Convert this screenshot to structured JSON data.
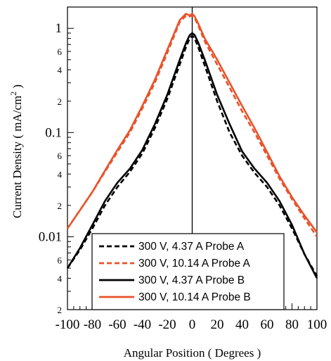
{
  "chart_data": {
    "type": "line",
    "xlabel": "Angular Position ( Degrees )",
    "ylabel_main": "Current Density ( mA/cm",
    "ylabel_sup": "2",
    "ylabel_end": " )",
    "xlim": [
      -100,
      100
    ],
    "ylim": [
      0.002,
      1.6
    ],
    "yscale": "log",
    "x_ticks": [
      -100,
      -80,
      -60,
      -40,
      -20,
      0,
      20,
      40,
      60,
      80,
      100
    ],
    "x_tick_labels": [
      "-100",
      "-80",
      "-60",
      "-40",
      "-20",
      "0",
      "20",
      "40",
      "60",
      "80",
      "100"
    ],
    "y_major_ticks": [
      {
        "value": 1,
        "label": "1"
      },
      {
        "value": 0.1,
        "label": "0.1"
      },
      {
        "value": 0.01,
        "label": "0.01"
      }
    ],
    "y_minor_ticks": [
      {
        "value": 6,
        "label": "6"
      },
      {
        "value": 4,
        "label": "4"
      },
      {
        "value": 2,
        "label": "2"
      }
    ],
    "vertical_line_x": 0,
    "legend_position": "bottom-center",
    "colors": {
      "black": "#000000",
      "orange": "#e8532b"
    },
    "series": [
      {
        "name": "300 V,   4.37 A Probe A",
        "color": "#000000",
        "dash": "dashed",
        "x": [
          -100,
          -90,
          -80,
          -70,
          -60,
          -50,
          -40,
          -30,
          -20,
          -10,
          -5,
          -2,
          0,
          2,
          5,
          10,
          20,
          30,
          40,
          50,
          60,
          70,
          80,
          90,
          100
        ],
        "y": [
          0.005,
          0.0075,
          0.012,
          0.02,
          0.03,
          0.042,
          0.063,
          0.11,
          0.21,
          0.45,
          0.66,
          0.8,
          0.85,
          0.8,
          0.65,
          0.44,
          0.2,
          0.1,
          0.06,
          0.041,
          0.03,
          0.02,
          0.012,
          0.0068,
          0.0042
        ]
      },
      {
        "name": "300 V, 10.14 A Probe A",
        "color": "#e8532b",
        "dash": "dashed",
        "x": [
          -100,
          -90,
          -80,
          -70,
          -60,
          -50,
          -40,
          -30,
          -20,
          -10,
          -5,
          -2,
          0,
          2,
          5,
          10,
          20,
          30,
          40,
          50,
          60,
          70,
          80,
          90,
          100
        ],
        "y": [
          0.012,
          0.018,
          0.027,
          0.042,
          0.065,
          0.1,
          0.17,
          0.3,
          0.58,
          1.15,
          1.32,
          1.3,
          1.32,
          1.25,
          1.05,
          0.75,
          0.45,
          0.27,
          0.16,
          0.1,
          0.06,
          0.036,
          0.023,
          0.015,
          0.01
        ]
      },
      {
        "name": "300 V,   4.37 A Probe B",
        "color": "#000000",
        "dash": "solid",
        "x": [
          -100,
          -90,
          -80,
          -70,
          -60,
          -50,
          -40,
          -30,
          -20,
          -10,
          -5,
          -2,
          0,
          2,
          5,
          10,
          20,
          30,
          40,
          50,
          60,
          70,
          80,
          90,
          100
        ],
        "y": [
          0.005,
          0.0078,
          0.013,
          0.022,
          0.033,
          0.045,
          0.068,
          0.12,
          0.23,
          0.5,
          0.72,
          0.86,
          0.9,
          0.86,
          0.72,
          0.5,
          0.23,
          0.12,
          0.066,
          0.045,
          0.033,
          0.022,
          0.013,
          0.0068,
          0.004
        ]
      },
      {
        "name": "300 V, 10.14 A Probe B",
        "color": "#e8532b",
        "dash": "solid",
        "x": [
          -100,
          -90,
          -80,
          -70,
          -60,
          -50,
          -40,
          -30,
          -20,
          -10,
          -5,
          -2,
          0,
          2,
          5,
          10,
          20,
          30,
          40,
          50,
          60,
          70,
          80,
          90,
          100
        ],
        "y": [
          0.012,
          0.018,
          0.027,
          0.043,
          0.068,
          0.105,
          0.18,
          0.32,
          0.62,
          1.2,
          1.38,
          1.33,
          1.38,
          1.3,
          1.1,
          0.8,
          0.5,
          0.3,
          0.18,
          0.11,
          0.065,
          0.038,
          0.024,
          0.016,
          0.011
        ]
      }
    ]
  }
}
